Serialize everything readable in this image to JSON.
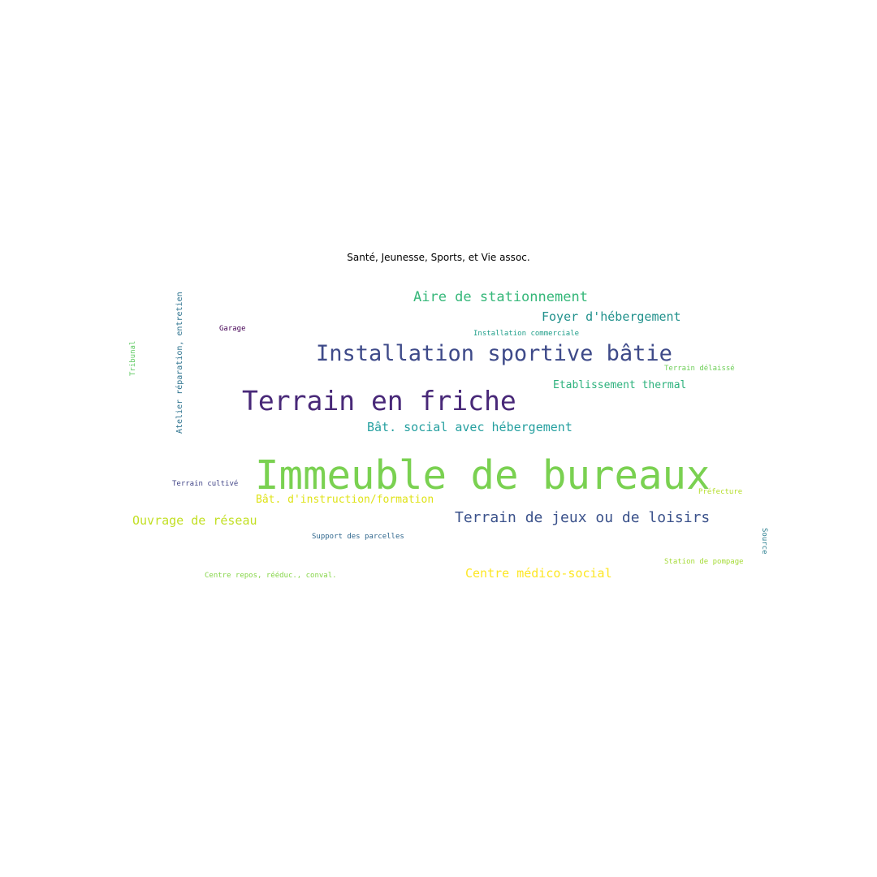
{
  "title": "Santé, Jeunesse, Sports, et Vie assoc.",
  "words": [
    {
      "text": "Immeuble de bureaux",
      "color": "#7ad151"
    },
    {
      "text": "Terrain en friche",
      "color": "#482878"
    },
    {
      "text": "Installation sportive bâtie",
      "color": "#3e4a89"
    },
    {
      "text": "Terrain de jeux ou de loisirs",
      "color": "#3b528b"
    },
    {
      "text": "Aire de stationnement",
      "color": "#35b779"
    },
    {
      "text": "Foyer d'hébergement",
      "color": "#21918c"
    },
    {
      "text": "Bât. social avec hébergement",
      "color": "#26a0a0"
    },
    {
      "text": "Ouvrage de réseau",
      "color": "#c2df23"
    },
    {
      "text": "Centre médico-social",
      "color": "#fde725"
    },
    {
      "text": "Bât. d'instruction/formation",
      "color": "#dfe318"
    },
    {
      "text": "Etablissement thermal",
      "color": "#2db27d"
    },
    {
      "text": "Centre repos, rééduc., conval.",
      "color": "#86d549"
    },
    {
      "text": "Support des parcelles",
      "color": "#31688e"
    },
    {
      "text": "Installation commerciale",
      "color": "#1f9e89"
    },
    {
      "text": "Station de pompage",
      "color": "#a5db36"
    },
    {
      "text": "Terrain cultivé",
      "color": "#414487"
    },
    {
      "text": "Terrain délaissé",
      "color": "#6ece58"
    },
    {
      "text": "Préfecture",
      "color": "#b5de2b"
    },
    {
      "text": "Garage",
      "color": "#440154"
    },
    {
      "text": "Atelier réparation, entretien",
      "color": "#2c728e"
    },
    {
      "text": "Tribunal",
      "color": "#5ec962"
    },
    {
      "text": "Source",
      "color": "#287d8e"
    }
  ]
}
